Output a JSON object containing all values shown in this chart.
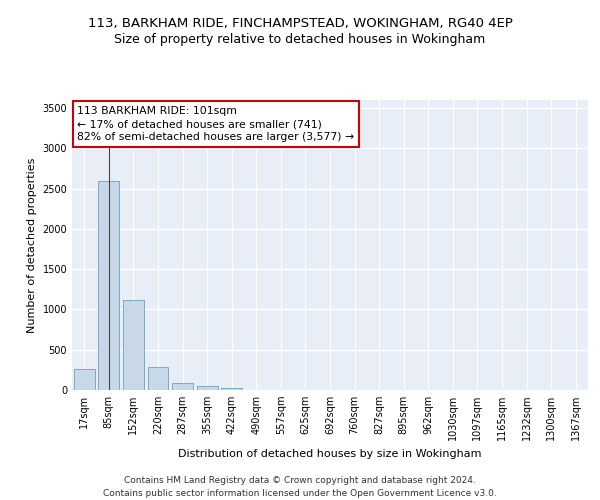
{
  "title1": "113, BARKHAM RIDE, FINCHAMPSTEAD, WOKINGHAM, RG40 4EP",
  "title2": "Size of property relative to detached houses in Wokingham",
  "xlabel": "Distribution of detached houses by size in Wokingham",
  "ylabel": "Number of detached properties",
  "bar_color": "#c8d8e8",
  "bar_edge_color": "#7aaac8",
  "background_color": "#e8eef8",
  "grid_color": "#ffffff",
  "annotation_text": "113 BARKHAM RIDE: 101sqm\n← 17% of detached houses are smaller (741)\n82% of semi-detached houses are larger (3,577) →",
  "annotation_box_color": "#cc0000",
  "bin_labels": [
    "17sqm",
    "85sqm",
    "152sqm",
    "220sqm",
    "287sqm",
    "355sqm",
    "422sqm",
    "490sqm",
    "557sqm",
    "625sqm",
    "692sqm",
    "760sqm",
    "827sqm",
    "895sqm",
    "962sqm",
    "1030sqm",
    "1097sqm",
    "1165sqm",
    "1232sqm",
    "1300sqm",
    "1367sqm"
  ],
  "bin_values": [
    265,
    2600,
    1120,
    290,
    85,
    45,
    30,
    0,
    0,
    0,
    0,
    0,
    0,
    0,
    0,
    0,
    0,
    0,
    0,
    0,
    0
  ],
  "ylim": [
    0,
    3600
  ],
  "yticks": [
    0,
    500,
    1000,
    1500,
    2000,
    2500,
    3000,
    3500
  ],
  "footer_text": "Contains HM Land Registry data © Crown copyright and database right 2024.\nContains public sector information licensed under the Open Government Licence v3.0.",
  "title1_fontsize": 9.5,
  "title2_fontsize": 9,
  "annotation_fontsize": 7.8,
  "axis_label_fontsize": 8,
  "tick_fontsize": 7,
  "footer_fontsize": 6.5
}
